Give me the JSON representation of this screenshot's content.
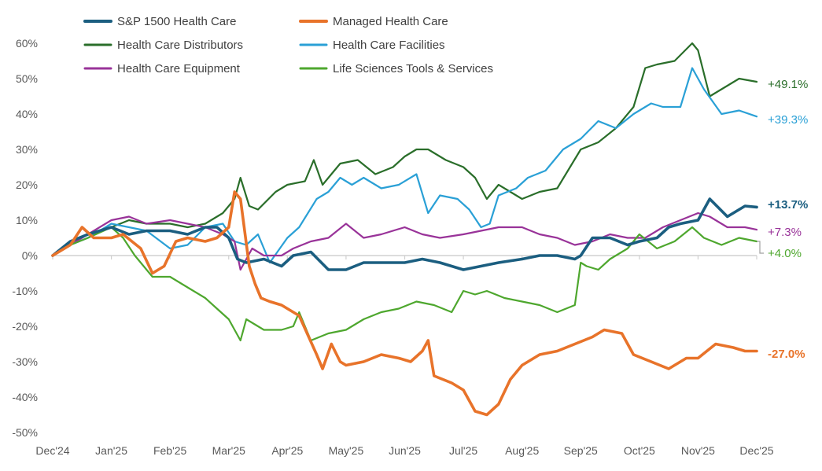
{
  "chart_data": {
    "type": "line",
    "title": "",
    "xlabel": "",
    "ylabel": "",
    "ylim": [
      -50,
      60
    ],
    "y_ticks": [
      60,
      50,
      40,
      30,
      20,
      10,
      0,
      -10,
      -20,
      -30,
      -40,
      -50
    ],
    "y_tick_labels": [
      "60%",
      "50%",
      "40%",
      "30%",
      "20%",
      "10%",
      "0%",
      "-10%",
      "-20%",
      "-30%",
      "-40%",
      "-50%"
    ],
    "x_tick_labels": [
      "Dec'24",
      "Jan'25",
      "Feb'25",
      "Mar'25",
      "Apr'25",
      "May'25",
      "Jun'25",
      "Jul'25",
      "Aug'25",
      "Sep'25",
      "Oct'25",
      "Nov'25",
      "Dec'25"
    ],
    "grid": false,
    "legend_position": "top",
    "x_unit": "months since Dec'24",
    "series": [
      {
        "name": "S&P 1500 Health Care",
        "color": "#1b5e80",
        "end_label": "+13.7%",
        "bold": true,
        "x": [
          0,
          0.3,
          0.6,
          1.0,
          1.3,
          1.6,
          2.0,
          2.3,
          2.6,
          2.8,
          3.0,
          3.15,
          3.3,
          3.6,
          3.9,
          4.1,
          4.4,
          4.7,
          5.0,
          5.3,
          5.6,
          6.0,
          6.3,
          6.6,
          7.0,
          7.3,
          7.6,
          8.0,
          8.3,
          8.6,
          8.9,
          9.0,
          9.2,
          9.5,
          9.8,
          10.0,
          10.3,
          10.5,
          10.7,
          11.0,
          11.2,
          11.5,
          11.8,
          12.0
        ],
        "y": [
          0,
          4,
          6,
          8,
          6,
          7,
          7,
          6,
          8,
          8,
          5,
          -1,
          -2,
          -1,
          -3,
          0,
          1,
          -4,
          -4,
          -2,
          -2,
          -2,
          -1,
          -2,
          -4,
          -3,
          -2,
          -1,
          0,
          0,
          -1,
          0,
          5,
          5,
          3,
          4,
          5,
          8,
          9,
          10,
          16,
          11,
          14,
          13.7
        ]
      },
      {
        "name": "Managed Health Care",
        "color": "#e8732a",
        "end_label": "-27.0%",
        "bold": true,
        "x": [
          0,
          0.3,
          0.5,
          0.7,
          1.0,
          1.2,
          1.5,
          1.7,
          1.9,
          2.1,
          2.3,
          2.6,
          2.8,
          3.0,
          3.1,
          3.2,
          3.35,
          3.45,
          3.55,
          3.7,
          3.9,
          4.2,
          4.5,
          4.6,
          4.75,
          4.9,
          5.0,
          5.3,
          5.6,
          5.9,
          6.1,
          6.3,
          6.4,
          6.5,
          6.8,
          7.0,
          7.2,
          7.4,
          7.6,
          7.8,
          8.0,
          8.3,
          8.6,
          8.9,
          9.2,
          9.4,
          9.7,
          9.9,
          10.2,
          10.5,
          10.8,
          11.0,
          11.3,
          11.6,
          11.8,
          12.0
        ],
        "y": [
          0,
          3,
          8,
          5,
          5,
          6,
          2,
          -5,
          -3,
          4,
          5,
          4,
          5,
          8,
          18,
          16,
          -3,
          -8,
          -12,
          -13,
          -14,
          -17,
          -28,
          -32,
          -25,
          -30,
          -31,
          -30,
          -28,
          -29,
          -30,
          -27,
          -24,
          -34,
          -36,
          -38,
          -44,
          -45,
          -42,
          -35,
          -31,
          -28,
          -27,
          -25,
          -23,
          -21,
          -22,
          -28,
          -30,
          -32,
          -29,
          -29,
          -25,
          -26,
          -27,
          -27
        ]
      },
      {
        "name": "Health Care Distributors",
        "color": "#2a6e2a",
        "end_label": "+49.1%",
        "bold": false,
        "x": [
          0,
          0.3,
          0.6,
          1.0,
          1.3,
          1.6,
          2.0,
          2.3,
          2.6,
          2.9,
          3.1,
          3.2,
          3.35,
          3.5,
          3.8,
          4.0,
          4.3,
          4.45,
          4.6,
          4.9,
          5.2,
          5.5,
          5.8,
          6.0,
          6.2,
          6.4,
          6.7,
          7.0,
          7.2,
          7.4,
          7.6,
          7.8,
          8.0,
          8.3,
          8.6,
          9.0,
          9.3,
          9.6,
          9.9,
          10.1,
          10.3,
          10.6,
          10.9,
          11.0,
          11.2,
          11.5,
          11.7,
          12.0
        ],
        "y": [
          0,
          4,
          6,
          8,
          10,
          9,
          9,
          8,
          9,
          12,
          16,
          22,
          14,
          13,
          18,
          20,
          21,
          27,
          20,
          26,
          27,
          23,
          25,
          28,
          30,
          30,
          27,
          25,
          22,
          16,
          20,
          18,
          16,
          18,
          19,
          30,
          32,
          36,
          42,
          53,
          54,
          55,
          60,
          58,
          45,
          48,
          50,
          49.1
        ]
      },
      {
        "name": "Health Care Facilities",
        "color": "#2aa0d6",
        "end_label": "+39.3%",
        "bold": false,
        "x": [
          0,
          0.3,
          0.6,
          1.0,
          1.3,
          1.6,
          2.0,
          2.3,
          2.6,
          2.9,
          3.1,
          3.3,
          3.5,
          3.7,
          4.0,
          4.2,
          4.5,
          4.7,
          4.9,
          5.1,
          5.3,
          5.6,
          5.9,
          6.2,
          6.4,
          6.6,
          6.9,
          7.1,
          7.3,
          7.45,
          7.6,
          7.9,
          8.1,
          8.4,
          8.7,
          9.0,
          9.3,
          9.6,
          9.9,
          10.2,
          10.4,
          10.7,
          10.9,
          11.1,
          11.4,
          11.7,
          12.0
        ],
        "y": [
          0,
          3,
          5,
          9,
          8,
          7,
          2,
          3,
          8,
          9,
          4,
          3,
          6,
          -2,
          5,
          8,
          16,
          18,
          22,
          20,
          22,
          19,
          20,
          23,
          12,
          17,
          16,
          13,
          8,
          9,
          17,
          19,
          22,
          24,
          30,
          33,
          38,
          36,
          40,
          43,
          42,
          42,
          53,
          47,
          40,
          41,
          39.3
        ]
      },
      {
        "name": "Health Care Equipment",
        "color": "#993399",
        "end_label": "+7.3%",
        "bold": false,
        "x": [
          0,
          0.3,
          0.6,
          1.0,
          1.3,
          1.6,
          2.0,
          2.3,
          2.6,
          2.9,
          3.1,
          3.2,
          3.4,
          3.6,
          3.9,
          4.1,
          4.4,
          4.7,
          5.0,
          5.3,
          5.6,
          6.0,
          6.3,
          6.6,
          7.0,
          7.3,
          7.6,
          8.0,
          8.3,
          8.6,
          8.9,
          9.2,
          9.5,
          9.8,
          10.1,
          10.4,
          10.7,
          11.0,
          11.2,
          11.5,
          11.8,
          12.0
        ],
        "y": [
          0,
          3,
          6,
          10,
          11,
          9,
          10,
          9,
          8,
          6,
          4,
          -4,
          2,
          0,
          0,
          2,
          4,
          5,
          9,
          5,
          6,
          8,
          6,
          5,
          6,
          7,
          8,
          8,
          6,
          5,
          3,
          4,
          6,
          5,
          5,
          8,
          10,
          12,
          11,
          8,
          8,
          7.3
        ]
      },
      {
        "name": "Life Sciences Tools & Services",
        "color": "#4ea72e",
        "end_label": "+4.0%",
        "bold": false,
        "x": [
          0,
          0.3,
          0.6,
          1.0,
          1.2,
          1.4,
          1.7,
          2.0,
          2.3,
          2.6,
          2.8,
          3.0,
          3.2,
          3.3,
          3.6,
          3.9,
          4.1,
          4.2,
          4.4,
          4.7,
          5.0,
          5.3,
          5.6,
          5.9,
          6.2,
          6.5,
          6.8,
          7.0,
          7.2,
          7.4,
          7.7,
          8.0,
          8.3,
          8.6,
          8.9,
          9.0,
          9.1,
          9.3,
          9.5,
          9.8,
          10.0,
          10.3,
          10.6,
          10.9,
          11.1,
          11.4,
          11.7,
          12.0
        ],
        "y": [
          0,
          3,
          5,
          8,
          5,
          0,
          -6,
          -6,
          -9,
          -12,
          -15,
          -18,
          -24,
          -18,
          -21,
          -21,
          -20,
          -16,
          -24,
          -22,
          -21,
          -18,
          -16,
          -15,
          -13,
          -14,
          -16,
          -10,
          -11,
          -10,
          -12,
          -13,
          -14,
          -16,
          -14,
          -2,
          -3,
          -4,
          -1,
          2,
          6,
          2,
          4,
          8,
          5,
          3,
          5,
          4.0
        ]
      }
    ]
  }
}
